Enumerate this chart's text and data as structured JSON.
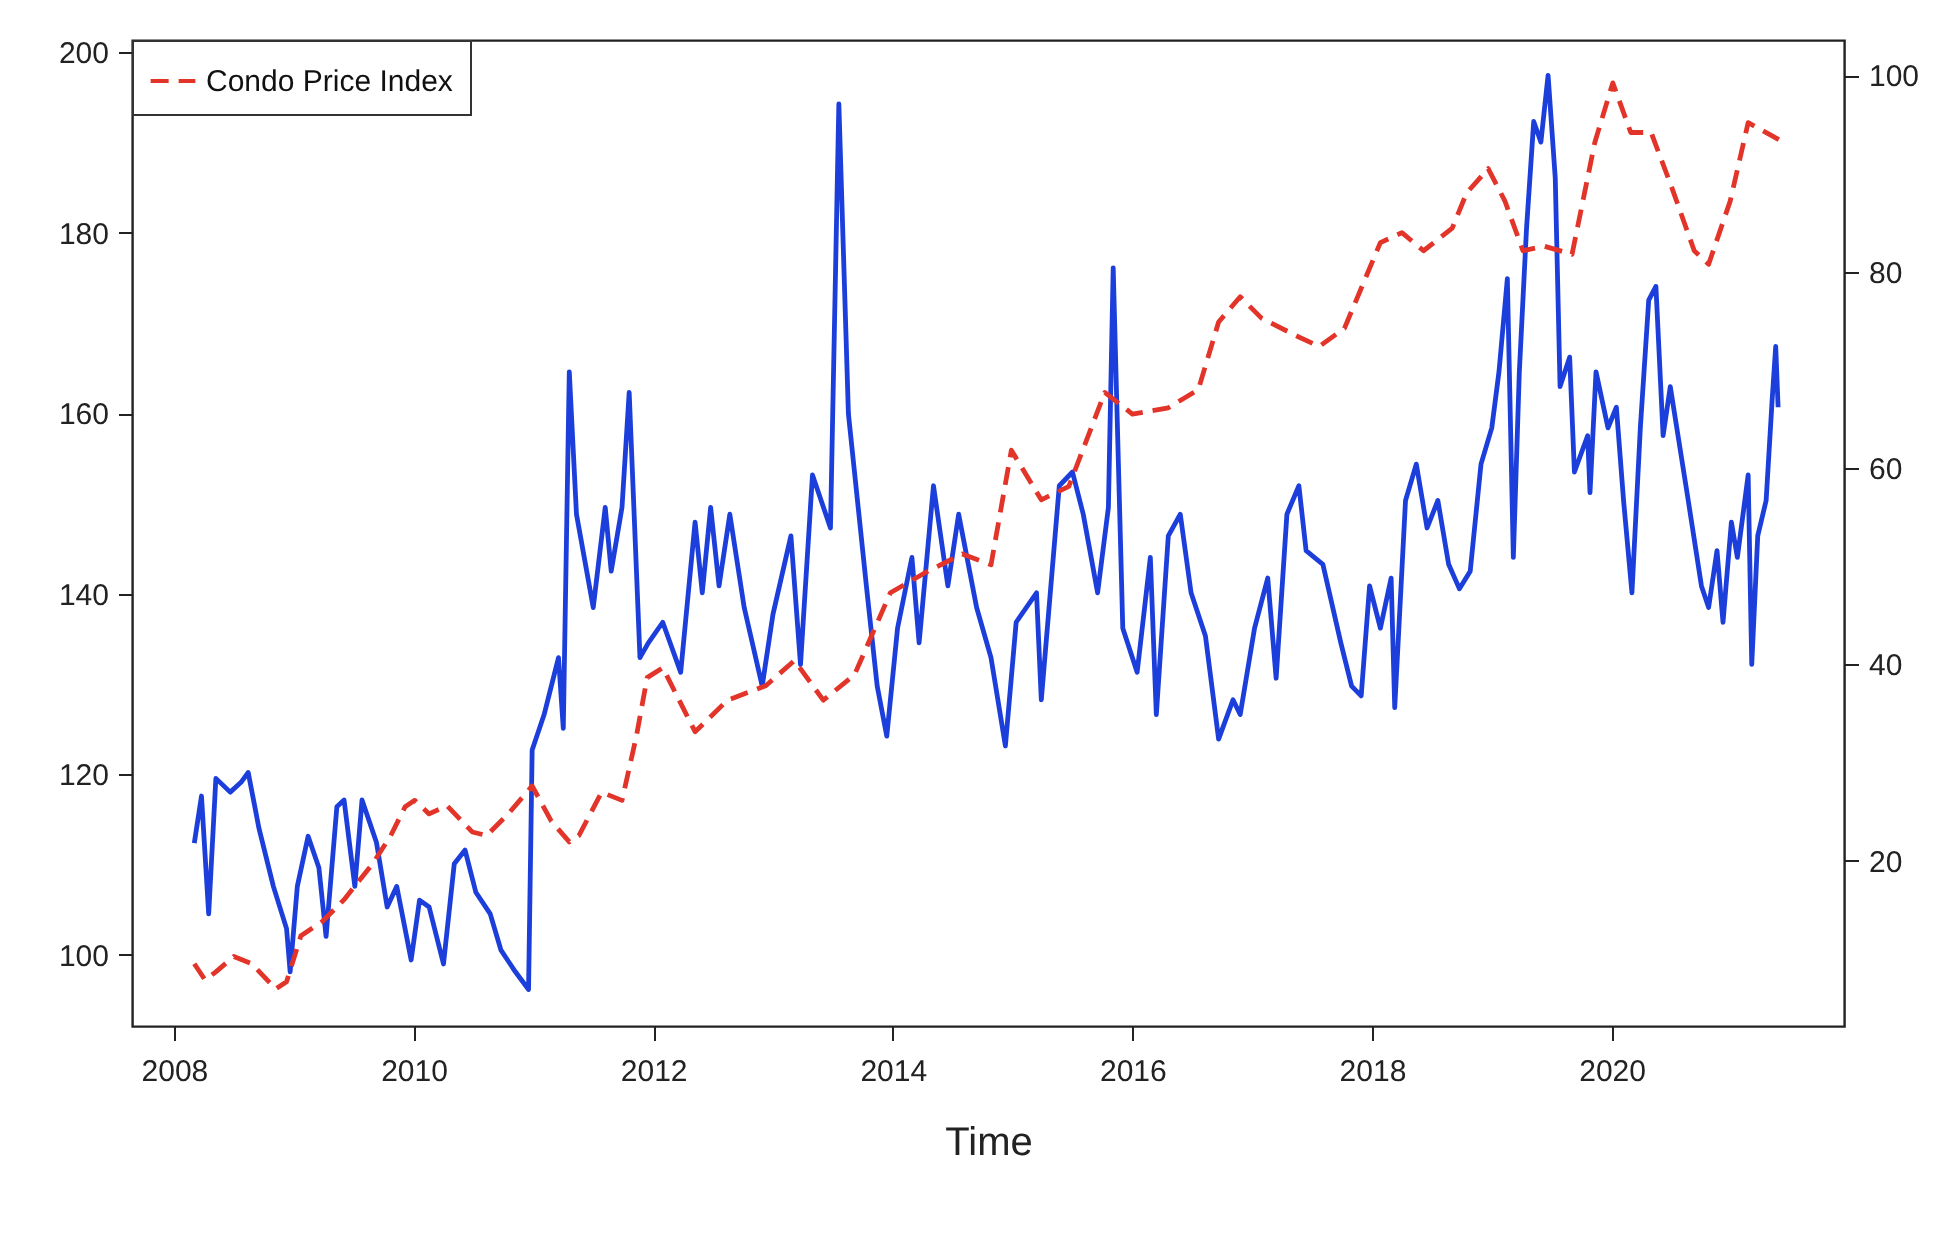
{
  "chart_data": {
    "type": "line",
    "xlabel": "Time",
    "xlim": [
      2007.65,
      2021.94
    ],
    "xticks": [
      2008,
      2010,
      2012,
      2014,
      2016,
      2018,
      2020
    ],
    "ylim": [
      92.1,
      201.35
    ],
    "yticks": [
      100,
      120,
      140,
      160,
      180,
      200
    ],
    "y2lim": [
      3.18,
      103.6
    ],
    "y2ticks": [
      20,
      40,
      60,
      80,
      100
    ],
    "legend": "top left",
    "grid": false,
    "series": [
      {
        "color": "#1c3fdc",
        "axis": "y2",
        "line_style": "solid",
        "x": [
          2008.17,
          2008.23,
          2008.29,
          2008.35,
          2008.47,
          2008.56,
          2008.62,
          2008.71,
          2008.83,
          2008.94,
          2008.97,
          2009.03,
          2009.12,
          2009.21,
          2009.27,
          2009.36,
          2009.42,
          2009.51,
          2009.57,
          2009.69,
          2009.78,
          2009.86,
          2009.98,
          2010.05,
          2010.13,
          2010.25,
          2010.34,
          2010.43,
          2010.52,
          2010.64,
          2010.73,
          2010.85,
          2010.96,
          2010.99,
          2011.09,
          2011.21,
          2011.25,
          2011.3,
          2011.36,
          2011.5,
          2011.6,
          2011.65,
          2011.74,
          2011.8,
          2011.89,
          2011.96,
          2012.08,
          2012.23,
          2012.35,
          2012.41,
          2012.48,
          2012.55,
          2012.64,
          2012.76,
          2012.91,
          2013.0,
          2013.15,
          2013.23,
          2013.33,
          2013.48,
          2013.55,
          2013.63,
          2013.78,
          2013.87,
          2013.95,
          2014.04,
          2014.16,
          2014.22,
          2014.34,
          2014.46,
          2014.55,
          2014.7,
          2014.82,
          2014.94,
          2015.03,
          2015.2,
          2015.24,
          2015.39,
          2015.5,
          2015.59,
          2015.71,
          2015.8,
          2015.84,
          2015.92,
          2016.04,
          2016.15,
          2016.2,
          2016.3,
          2016.4,
          2016.49,
          2016.61,
          2016.72,
          2016.84,
          2016.9,
          2017.02,
          2017.13,
          2017.2,
          2017.29,
          2017.39,
          2017.45,
          2017.59,
          2017.74,
          2017.83,
          2017.91,
          2017.98,
          2018.07,
          2018.16,
          2018.19,
          2018.28,
          2018.37,
          2018.46,
          2018.55,
          2018.64,
          2018.73,
          2018.82,
          2018.91,
          2019.0,
          2019.06,
          2019.13,
          2019.18,
          2019.23,
          2019.29,
          2019.35,
          2019.41,
          2019.47,
          2019.53,
          2019.57,
          2019.65,
          2019.69,
          2019.8,
          2019.82,
          2019.87,
          2019.97,
          2020.04,
          2020.1,
          2020.17,
          2020.24,
          2020.31,
          2020.37,
          2020.43,
          2020.49,
          2020.64,
          2020.75,
          2020.81,
          2020.88,
          2020.93,
          2021.0,
          2021.05,
          2021.14,
          2021.17,
          2021.22,
          2021.29,
          2021.34,
          2021.37,
          2021.39
        ],
        "values": [
          21.8,
          26.6,
          14.6,
          28.4,
          27.0,
          28.0,
          29.0,
          23.3,
          17.4,
          13.1,
          8.7,
          17.4,
          22.5,
          19.3,
          12.3,
          25.5,
          26.2,
          17.4,
          26.2,
          21.9,
          15.3,
          17.4,
          9.9,
          16.0,
          15.3,
          9.5,
          19.7,
          21.1,
          16.8,
          14.6,
          10.9,
          8.7,
          6.9,
          31.3,
          34.9,
          40.7,
          33.5,
          69.8,
          55.3,
          45.8,
          56.0,
          49.5,
          56.0,
          67.7,
          40.7,
          42.2,
          44.3,
          39.2,
          54.5,
          47.3,
          56.0,
          48.0,
          55.3,
          45.8,
          37.8,
          45.1,
          53.1,
          40.0,
          59.3,
          53.9,
          97.1,
          65.5,
          48.0,
          37.8,
          32.7,
          43.7,
          50.9,
          42.2,
          58.2,
          48.0,
          55.3,
          45.8,
          40.7,
          31.7,
          44.3,
          47.3,
          36.4,
          58.2,
          59.6,
          55.3,
          47.3,
          56.0,
          80.4,
          43.7,
          39.2,
          50.9,
          34.9,
          53.1,
          55.3,
          47.3,
          42.9,
          32.4,
          36.4,
          34.9,
          43.7,
          48.8,
          38.6,
          55.3,
          58.2,
          51.6,
          50.2,
          42.2,
          37.8,
          36.8,
          48.0,
          43.7,
          48.8,
          35.6,
          56.7,
          60.4,
          53.9,
          56.7,
          50.2,
          47.7,
          49.5,
          60.4,
          64.1,
          69.8,
          79.3,
          50.9,
          69.8,
          84.4,
          95.3,
          93.2,
          100,
          89.5,
          68.3,
          71.3,
          59.6,
          63.3,
          57.5,
          69.8,
          64.1,
          66.2,
          56.7,
          47.3,
          64.1,
          77.1,
          78.5,
          63.3,
          68.3,
          56.7,
          48.0,
          45.8,
          51.6,
          44.3,
          54.5,
          50.9,
          59.3,
          40.0,
          53.1,
          56.7,
          66.9,
          72.4,
          66.2
        ]
      },
      {
        "name": "Condo Price Index",
        "color": "#e3342a",
        "axis": "y",
        "line_style": "dashed",
        "x": [
          2008.17,
          2008.26,
          2008.35,
          2008.5,
          2008.65,
          2008.85,
          2008.94,
          2009.06,
          2009.24,
          2009.42,
          2009.66,
          2009.81,
          2009.93,
          2010.01,
          2010.13,
          2010.28,
          2010.49,
          2010.61,
          2010.79,
          2010.99,
          2011.15,
          2011.3,
          2011.38,
          2011.57,
          2011.74,
          2011.86,
          2011.95,
          2012.08,
          2012.35,
          2012.62,
          2012.94,
          2013.18,
          2013.42,
          2013.68,
          2013.98,
          2014.28,
          2014.58,
          2014.82,
          2014.99,
          2015.24,
          2015.47,
          2015.77,
          2016.0,
          2016.3,
          2016.55,
          2016.72,
          2016.9,
          2017.08,
          2017.38,
          2017.56,
          2017.77,
          2018.07,
          2018.25,
          2018.43,
          2018.67,
          2018.79,
          2018.97,
          2019.11,
          2019.26,
          2019.44,
          2019.67,
          2019.86,
          2020.01,
          2020.16,
          2020.33,
          2020.5,
          2020.69,
          2020.81,
          2020.99,
          2021.14,
          2021.41
        ],
        "values": [
          99.0,
          97.2,
          98.1,
          99.8,
          99.0,
          96.2,
          97.0,
          102.1,
          103.7,
          106.1,
          110.1,
          113.2,
          116.4,
          117.1,
          115.6,
          116.5,
          113.6,
          113.2,
          115.6,
          118.7,
          114.8,
          112.5,
          113.2,
          118.0,
          117.1,
          124.2,
          130.7,
          131.8,
          124.7,
          128.2,
          129.8,
          132.6,
          128.2,
          131.0,
          140.1,
          142.4,
          144.4,
          143.2,
          155.9,
          150.4,
          151.9,
          162.3,
          159.9,
          160.6,
          162.6,
          170.1,
          172.9,
          170.5,
          168.5,
          167.4,
          169.4,
          178.9,
          180.0,
          178.0,
          180.5,
          184.4,
          187.1,
          183.5,
          178.0,
          178.5,
          177.6,
          190.0,
          196.6,
          191.1,
          191.1,
          185.1,
          178.0,
          176.5,
          183.5,
          192.2,
          190.2
        ]
      }
    ]
  }
}
